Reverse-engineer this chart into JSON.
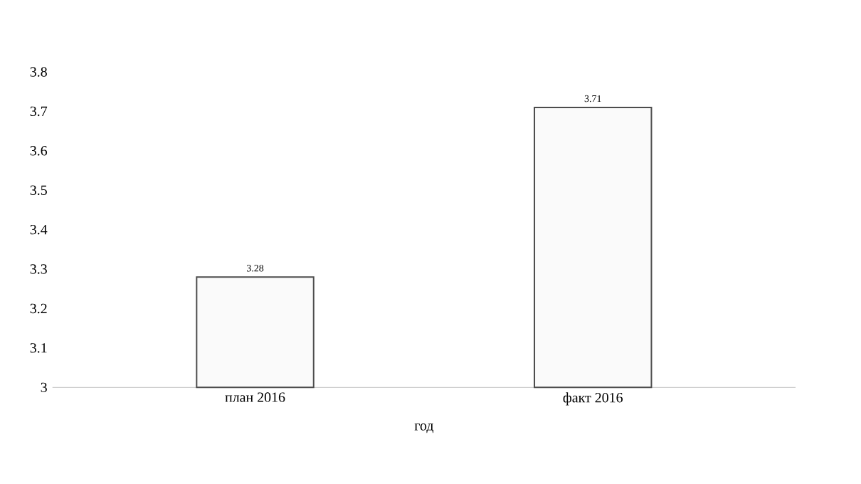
{
  "chart_data": {
    "type": "bar",
    "xlabel": "год",
    "categories": [
      "план 2016",
      "факт 2016"
    ],
    "values": [
      3.28,
      3.71
    ],
    "color": "#fafafa",
    "ylim": [
      3,
      3.8
    ],
    "yticks": [
      3,
      3.1,
      3.2,
      3.3,
      3.4,
      3.5,
      3.6,
      3.7,
      3.8
    ],
    "data_labels": true
  }
}
